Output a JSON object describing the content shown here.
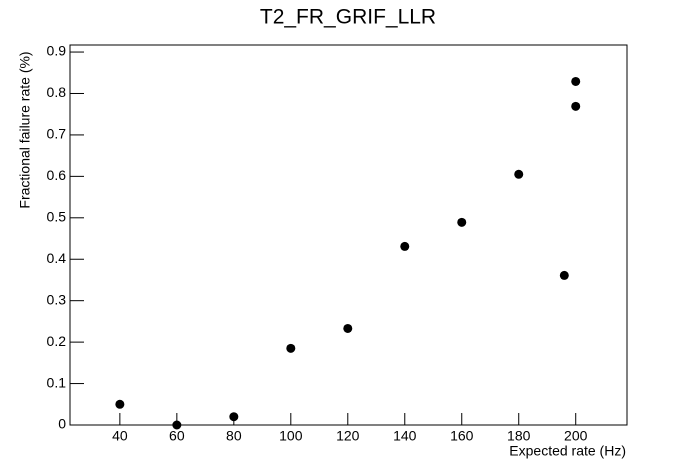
{
  "chart_data": {
    "type": "scatter",
    "title": "T2_FR_GRIF_LLR",
    "x_label": "Expected rate (Hz)",
    "y_label": "Fractional failure rate (%)",
    "x": [
      40,
      60,
      80,
      100,
      120,
      140,
      160,
      180,
      196,
      200,
      200
    ],
    "values": [
      0.05,
      0,
      0.02,
      0.185,
      0.233,
      0.431,
      0.489,
      0.605,
      0.361,
      0.769,
      0.829
    ],
    "color": "#000000",
    "xlim": [
      22.5,
      218
    ],
    "xticks": [
      40,
      60,
      80,
      100,
      120,
      140,
      160,
      180,
      200
    ],
    "ylim": [
      0,
      0.917
    ],
    "yticks": [
      0,
      0.1,
      0.2,
      0.3,
      0.4,
      0.5,
      0.6,
      0.7,
      0.8,
      0.9
    ]
  }
}
